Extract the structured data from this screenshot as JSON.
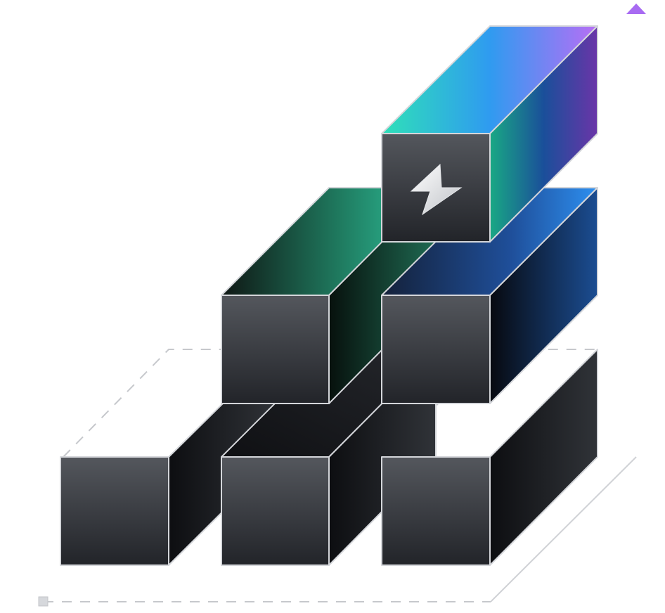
{
  "illustration": {
    "icons": {
      "axis_arrow": "arrow-up-icon",
      "origin_marker": "square-marker-icon",
      "top_block_badge": "lightning-bolt-icon"
    },
    "colors": {
      "front_face_top": "#4f5257",
      "front_face_bottom": "#25272b",
      "outline": "#d4d6da",
      "guide_dash": "#c6c8cc",
      "teal": "#2fd6b9",
      "blue": "#2f8cf0",
      "purple": "#a86bf2",
      "green_dark": "#1b4d3c",
      "navy": "#173a72",
      "dark": "#15171b"
    },
    "blocks": [
      {
        "id": "bottom-left",
        "accent": "dark"
      },
      {
        "id": "bottom-middle",
        "accent": "dark"
      },
      {
        "id": "bottom-right",
        "accent": "dark"
      },
      {
        "id": "middle-left",
        "accent": "green"
      },
      {
        "id": "middle-right",
        "accent": "blue"
      },
      {
        "id": "top",
        "accent": "teal-blue-purple",
        "badge": "lightning-bolt-icon"
      }
    ]
  }
}
